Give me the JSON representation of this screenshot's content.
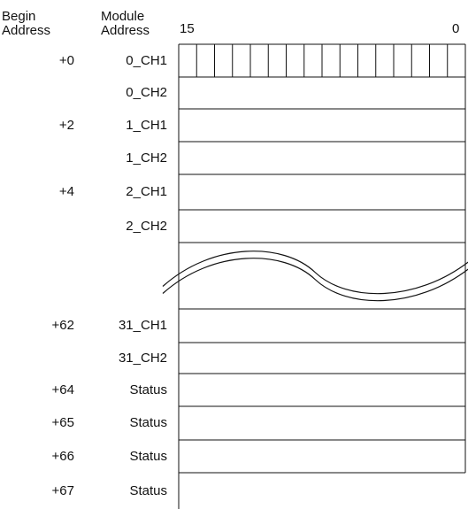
{
  "headers": {
    "begin_address": "Begin\nAddress",
    "module_address": "Module\nAddress",
    "bit_high": "15",
    "bit_low": "0"
  },
  "rows": [
    {
      "begin": "+0",
      "module": "0_CH1"
    },
    {
      "begin": "",
      "module": "0_CH2"
    },
    {
      "begin": "+2",
      "module": "1_CH1"
    },
    {
      "begin": "",
      "module": "1_CH2"
    },
    {
      "begin": "+4",
      "module": "2_CH1"
    },
    {
      "begin": "",
      "module": "2_CH2"
    },
    {
      "begin": "",
      "module": ""
    },
    {
      "begin": "+62",
      "module": "31_CH1"
    },
    {
      "begin": "",
      "module": "31_CH2"
    },
    {
      "begin": "+64",
      "module": "Status"
    },
    {
      "begin": "+65",
      "module": "Status"
    },
    {
      "begin": "+66",
      "module": "Status"
    },
    {
      "begin": "+67",
      "module": "Status"
    }
  ],
  "bit_cells": 16,
  "break_row_index": 6
}
